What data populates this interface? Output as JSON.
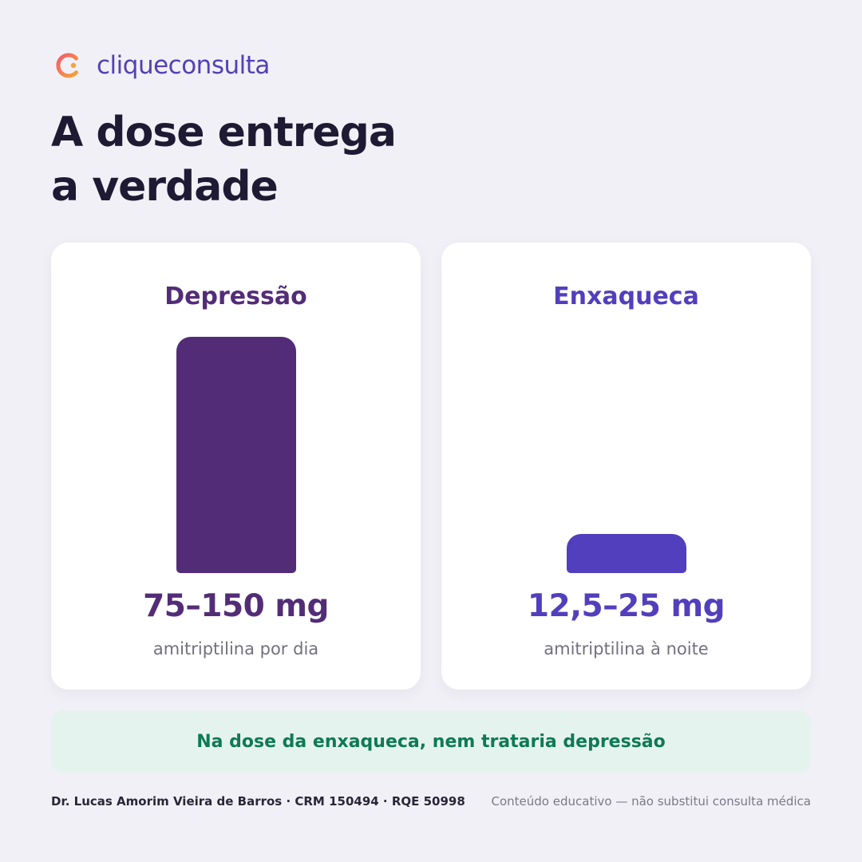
{
  "brand": {
    "name": "cliqueconsulta",
    "colors": {
      "ring_start": "#f35a6b",
      "ring_end": "#f7a23a",
      "dot": "#f7a23a",
      "text": "#5440b5"
    }
  },
  "headline": {
    "line1": "A dose entrega",
    "line2": "a verdade"
  },
  "comparison": {
    "max_dose_mg": 150,
    "cards": [
      {
        "title": "Depressão",
        "dose_label": "75–150 mg",
        "dose_mg": 150,
        "subtitle": "amitriptilina por dia",
        "color": "#532c78"
      },
      {
        "title": "Enxaqueca",
        "dose_label": "12,5–25 mg",
        "dose_mg": 25,
        "subtitle": "amitriptilina à noite",
        "color": "#523fbd"
      }
    ]
  },
  "callout": {
    "text": "Na dose da enxaqueca, nem trataria depressão",
    "color": "#0e7a55",
    "background": "#e5f3ee"
  },
  "footer": {
    "author": "Dr. Lucas Amorim Vieira de Barros · CRM 150494 · RQE 50998",
    "disclaimer": "Conteúdo educativo — não substitui consulta médica"
  }
}
